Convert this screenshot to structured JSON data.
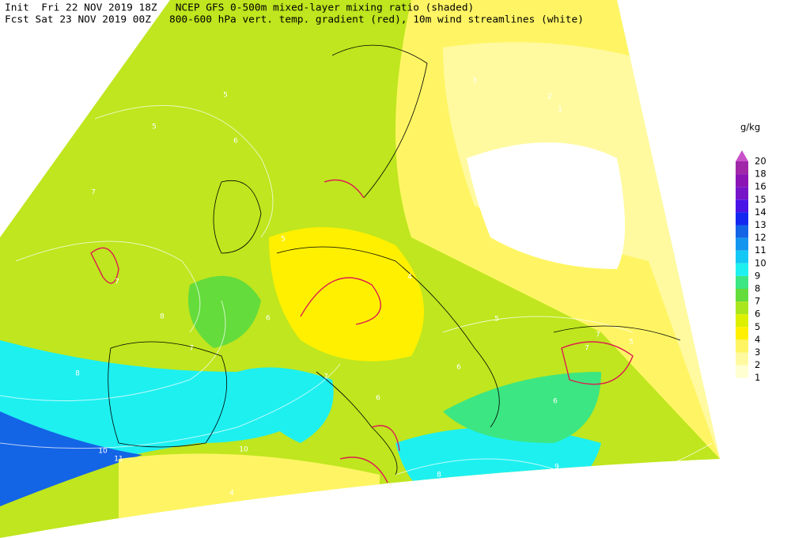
{
  "header": {
    "lines": [
      "Init  Fri 22 NOV 2019 18Z   NCEP GFS 0-500m mixed-layer mixing ratio (shaded)",
      "Fcst Sat 23 NOV 2019 00Z   800-600 hPa vert. temp. gradient (red), 10m wind streamlines (white)"
    ]
  },
  "legend": {
    "unit": "g/kg",
    "ticks": [
      20,
      18,
      16,
      15,
      14,
      13,
      12,
      11,
      10,
      9,
      8,
      7,
      6,
      5,
      4,
      3,
      2,
      1
    ],
    "colors": [
      "#a028a8",
      "#8c14b4",
      "#7814c8",
      "#4b14e6",
      "#1428f0",
      "#1464e6",
      "#1496f0",
      "#14c8f5",
      "#1ef0f0",
      "#3ce682",
      "#64dc3c",
      "#aae61e",
      "#dcf000",
      "#fff000",
      "#fff564",
      "#fffaa0",
      "#ffffd2"
    ],
    "top_color": "#c850c8"
  },
  "contour_labels": [
    "5",
    "6",
    "5",
    "7",
    "7",
    "8",
    "8",
    "7",
    "10",
    "10",
    "11",
    "4",
    "5",
    "6",
    "7",
    "8",
    "6",
    "4",
    "3",
    "2",
    "1",
    "7",
    "5",
    "6",
    "9",
    "5",
    "7",
    "6"
  ]
}
